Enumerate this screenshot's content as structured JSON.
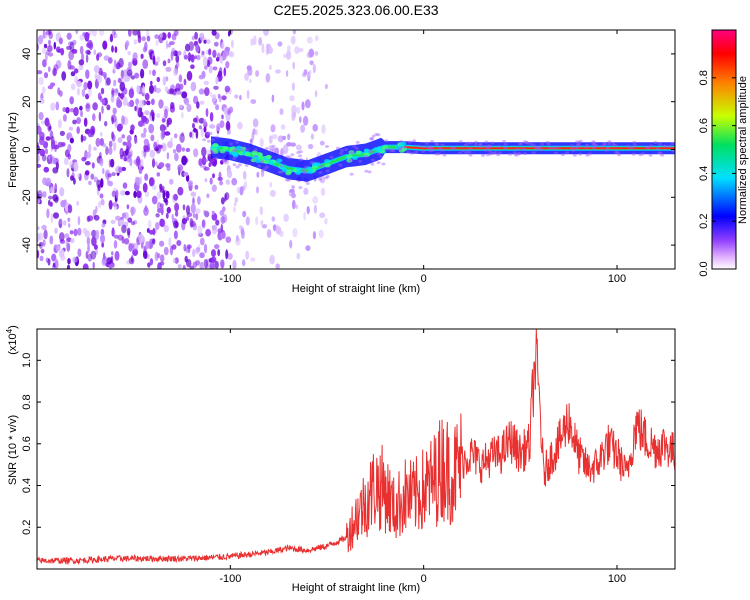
{
  "chart_data": [
    {
      "type": "heatmap",
      "title": "C2E5.2025.323.06.00.E33",
      "xlabel": "Height of straight line (km)",
      "ylabel": "Frequency (Hz)",
      "xlim": [
        -200,
        130
      ],
      "ylim": [
        -50,
        50
      ],
      "x_ticks": [
        -100,
        0,
        100
      ],
      "x_tick_labels": [
        "-100",
        "0",
        "100"
      ],
      "y_ticks": [
        -40,
        -20,
        0,
        20,
        40
      ],
      "y_tick_labels": [
        "-40",
        "-20",
        "0",
        "20",
        "40"
      ],
      "colorbar": {
        "label": "Normalized spectral amplitude",
        "range": [
          0,
          1
        ],
        "ticks": [
          0.0,
          0.2,
          0.4,
          0.6,
          0.8
        ],
        "tick_labels": [
          "0.0",
          "0.2",
          "0.4",
          "0.6",
          "0.8"
        ],
        "colors": [
          "#ffffff",
          "#d080ff",
          "#7000e0",
          "#0000ff",
          "#00c8ff",
          "#00e060",
          "#c8ff00",
          "#ff8000",
          "#ff0000",
          "#ff0080"
        ]
      },
      "ridge": {
        "x": [
          -110,
          -100,
          -90,
          -80,
          -70,
          -60,
          -50,
          -40,
          -30,
          -20,
          -10,
          0,
          10,
          20,
          40,
          60,
          80,
          100,
          130
        ],
        "y": [
          1,
          0,
          -2,
          -5,
          -8,
          -9,
          -6,
          -3,
          -2,
          1,
          1,
          0.5,
          0.5,
          0.5,
          0.5,
          0.5,
          0.5,
          0.5,
          0.5
        ]
      },
      "noise_region_x": [
        -200,
        -50
      ]
    },
    {
      "type": "line",
      "xlabel": "Height of straight line (km)",
      "ylabel": "SNR (10 * v/v)",
      "y_scale_label": "(x10",
      "y_scale_exp": "4",
      "y_scale_close": ")",
      "xlim": [
        -200,
        130
      ],
      "ylim": [
        0,
        1.15
      ],
      "x_ticks": [
        -100,
        0,
        100
      ],
      "x_tick_labels": [
        "-100",
        "0",
        "100"
      ],
      "y_ticks": [
        0.2,
        0.4,
        0.6,
        0.8,
        1.0
      ],
      "y_tick_labels": [
        "0.2",
        "0.4",
        "0.6",
        "0.8",
        "1.0"
      ],
      "series": [
        {
          "name": "SNR",
          "color": "#e83030",
          "x": [
            -200,
            -180,
            -160,
            -140,
            -120,
            -100,
            -90,
            -80,
            -70,
            -60,
            -50,
            -40,
            -35,
            -30,
            -25,
            -20,
            -15,
            -10,
            -5,
            0,
            5,
            10,
            15,
            20,
            25,
            30,
            35,
            40,
            45,
            50,
            55,
            56,
            58,
            60,
            62,
            65,
            70,
            75,
            80,
            85,
            90,
            95,
            100,
            105,
            110,
            115,
            120,
            125,
            130
          ],
          "values": [
            0.04,
            0.04,
            0.05,
            0.05,
            0.05,
            0.06,
            0.07,
            0.08,
            0.1,
            0.09,
            0.11,
            0.15,
            0.25,
            0.32,
            0.4,
            0.38,
            0.28,
            0.35,
            0.34,
            0.38,
            0.42,
            0.5,
            0.45,
            0.52,
            0.55,
            0.5,
            0.54,
            0.55,
            0.62,
            0.55,
            0.6,
            0.8,
            1.02,
            0.8,
            0.45,
            0.52,
            0.6,
            0.72,
            0.55,
            0.48,
            0.5,
            0.6,
            0.55,
            0.45,
            0.7,
            0.62,
            0.58,
            0.6,
            0.55
          ]
        }
      ]
    }
  ]
}
